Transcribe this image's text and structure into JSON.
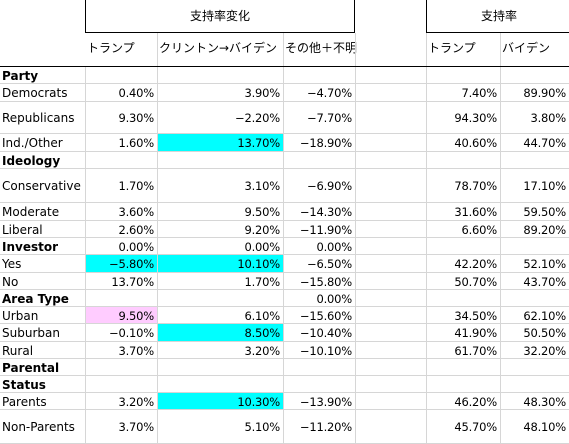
{
  "header": {
    "group1_title": "支持率変化",
    "group2_title": "支持率",
    "columns": [
      "トランプ",
      "クリントン→バイデン",
      "その他＋不明",
      "トランプ",
      "バイデン"
    ]
  },
  "rows": [
    {
      "label": "Party",
      "bold": true,
      "values": [
        "",
        "",
        "",
        "",
        ""
      ],
      "h": [
        0,
        0,
        0,
        0,
        0
      ],
      "top": 67,
      "height": 17
    },
    {
      "label": "Democrats",
      "bold": false,
      "values": [
        "0.40%",
        "3.90%",
        "-4.70%",
        "7.40%",
        "89.90%"
      ],
      "h": [
        0,
        0,
        0,
        0,
        0
      ],
      "top": 84,
      "height": 18
    },
    {
      "label": "Republicans",
      "bold": false,
      "values": [
        "9.30%",
        "-2.20%",
        "-7.70%",
        "94.30%",
        "3.80%"
      ],
      "h": [
        0,
        0,
        0,
        0,
        0
      ],
      "top": 102,
      "height": 32
    },
    {
      "label": "Ind./Other",
      "bold": false,
      "values": [
        "1.60%",
        "13.70%",
        "-18.90%",
        "40.60%",
        "44.70%"
      ],
      "h": [
        0,
        1,
        0,
        0,
        0
      ],
      "top": 134,
      "height": 18
    },
    {
      "label": "Ideology",
      "bold": true,
      "values": [
        "",
        "",
        "",
        "",
        ""
      ],
      "h": [
        0,
        0,
        0,
        0,
        0
      ],
      "top": 152,
      "height": 17
    },
    {
      "label": "Conservative",
      "bold": false,
      "values": [
        "1.70%",
        "3.10%",
        "-6.90%",
        "78.70%",
        "17.10%"
      ],
      "h": [
        0,
        0,
        0,
        0,
        0
      ],
      "top": 169,
      "height": 34
    },
    {
      "label": "Moderate",
      "bold": false,
      "values": [
        "3.60%",
        "9.50%",
        "-14.30%",
        "31.60%",
        "59.50%"
      ],
      "h": [
        0,
        0,
        0,
        0,
        0
      ],
      "top": 203,
      "height": 18
    },
    {
      "label": "Liberal",
      "bold": false,
      "values": [
        "2.60%",
        "9.20%",
        "-11.90%",
        "6.60%",
        "89.20%"
      ],
      "h": [
        0,
        0,
        0,
        0,
        0
      ],
      "top": 221,
      "height": 17
    },
    {
      "label": "Investor",
      "bold": true,
      "values": [
        "0.00%",
        "0.00%",
        "0.00%",
        "",
        ""
      ],
      "h": [
        0,
        0,
        0,
        0,
        0
      ],
      "top": 238,
      "height": 17
    },
    {
      "label": "Yes",
      "bold": false,
      "values": [
        "-5.80%",
        "10.10%",
        "-6.50%",
        "42.20%",
        "52.10%"
      ],
      "h": [
        1,
        1,
        0,
        0,
        0
      ],
      "top": 255,
      "height": 18
    },
    {
      "label": "No",
      "bold": false,
      "values": [
        "13.70%",
        "1.70%",
        "-15.80%",
        "50.70%",
        "43.70%"
      ],
      "h": [
        0,
        0,
        0,
        0,
        0
      ],
      "top": 273,
      "height": 17
    },
    {
      "label": "Area Type",
      "bold": true,
      "values": [
        "",
        "",
        "0.00%",
        "",
        ""
      ],
      "h": [
        0,
        0,
        0,
        0,
        0
      ],
      "top": 290,
      "height": 17
    },
    {
      "label": "Urban",
      "bold": false,
      "values": [
        "9.50%",
        "6.10%",
        "-15.60%",
        "34.50%",
        "62.10%"
      ],
      "h": [
        2,
        0,
        0,
        0,
        0
      ],
      "top": 307,
      "height": 17
    },
    {
      "label": "Suburban",
      "bold": false,
      "values": [
        "-0.10%",
        "8.50%",
        "-10.40%",
        "41.90%",
        "50.50%"
      ],
      "h": [
        0,
        1,
        0,
        0,
        0
      ],
      "top": 324,
      "height": 18
    },
    {
      "label": "Rural",
      "bold": false,
      "values": [
        "3.70%",
        "3.20%",
        "-10.10%",
        "61.70%",
        "32.20%"
      ],
      "h": [
        0,
        0,
        0,
        0,
        0
      ],
      "top": 342,
      "height": 17
    },
    {
      "label": "Parental",
      "bold": true,
      "values": [
        "",
        "",
        "",
        "",
        ""
      ],
      "h": [
        0,
        0,
        0,
        0,
        0
      ],
      "top": 359,
      "height": 17
    },
    {
      "label": "Status",
      "bold": true,
      "values": [
        "",
        "",
        "",
        "",
        ""
      ],
      "h": [
        0,
        0,
        0,
        0,
        0
      ],
      "top": 376,
      "height": 17
    },
    {
      "label": "Parents",
      "bold": false,
      "values": [
        "3.20%",
        "10.30%",
        "-13.90%",
        "46.20%",
        "48.30%"
      ],
      "h": [
        0,
        1,
        0,
        0,
        0
      ],
      "top": 393,
      "height": 17
    },
    {
      "label": "Non-Parents",
      "bold": false,
      "values": [
        "3.70%",
        "5.10%",
        "-11.20%",
        "45.70%",
        "48.10%"
      ],
      "h": [
        0,
        0,
        0,
        0,
        0
      ],
      "top": 410,
      "height": 34
    }
  ]
}
